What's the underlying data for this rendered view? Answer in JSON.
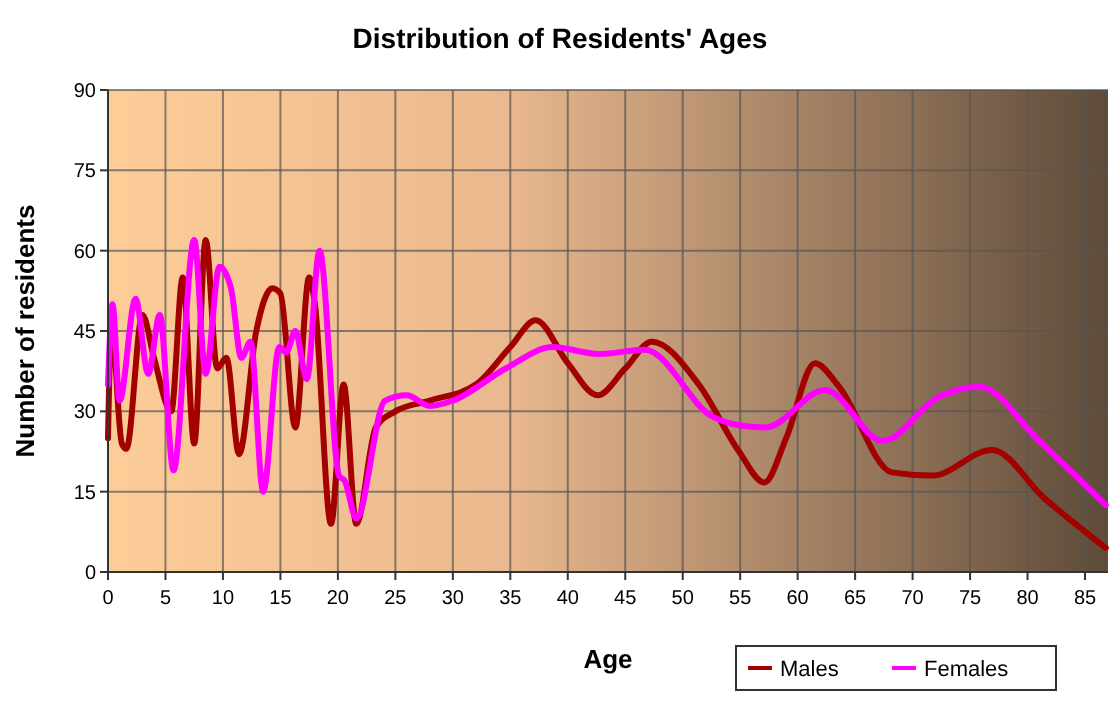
{
  "chart_data": {
    "type": "line",
    "title": "Distribution of Residents' Ages",
    "xlabel": "Age",
    "ylabel": "Number of residents",
    "xlim": [
      0,
      87
    ],
    "xticks": [
      0,
      5,
      10,
      15,
      20,
      25,
      30,
      35,
      40,
      45,
      50,
      55,
      60,
      65,
      70,
      75,
      80,
      85
    ],
    "ylim": [
      0,
      90
    ],
    "yticks": [
      0,
      15,
      30,
      45,
      60,
      75,
      90
    ],
    "grid": true,
    "legend": "bottom right",
    "line_style": "solid",
    "series": [
      {
        "name": "Males",
        "color": "#a30000",
        "x": [
          0,
          0.3,
          1.2,
          1.6,
          3,
          4,
          5.5,
          6.5,
          7.5,
          8.5,
          9.5,
          10.3,
          11.4,
          12.9,
          14.3,
          15,
          16.3,
          17.5,
          18,
          19.4,
          20.5,
          21.6,
          23.3,
          25,
          28,
          32,
          35,
          37.2,
          40,
          42.6,
          45,
          47.3,
          51.4,
          54.9,
          57.1,
          59,
          61.5,
          63.6,
          68.2,
          71.7,
          76.9,
          81.5,
          86.8
        ],
        "values": [
          25,
          46,
          24,
          23,
          48,
          40,
          30,
          55,
          24,
          62,
          38,
          40,
          22,
          45,
          53,
          52,
          27,
          55,
          50,
          9,
          35,
          9,
          27,
          30,
          32,
          35,
          42,
          47,
          39,
          33,
          38,
          43,
          35,
          22.5,
          16.7,
          25,
          39,
          34.6,
          18.6,
          18,
          22.8,
          13.7,
          4.5
        ]
      },
      {
        "name": "Females",
        "color": "#ff00ff",
        "x": [
          0,
          0.4,
          1,
          2.4,
          3.5,
          4.5,
          5.7,
          7.5,
          8.5,
          9.7,
          10.7,
          11.6,
          12.4,
          13.5,
          14.9,
          15.5,
          16.3,
          17.3,
          18.4,
          20.1,
          20.6,
          21.6,
          24.1,
          26,
          28,
          30,
          34.6,
          38.7,
          42.7,
          46.7,
          52.6,
          54.9,
          57.2,
          62.4,
          67.4,
          72.3,
          75.8,
          81,
          86.8
        ],
        "values": [
          35,
          50,
          32,
          51,
          37,
          48,
          19,
          62,
          37,
          57,
          53,
          40,
          43,
          15,
          42,
          41,
          45,
          36,
          60,
          18,
          17,
          10,
          32,
          33,
          31,
          32,
          38,
          42,
          40.7,
          41.5,
          29,
          27.4,
          27,
          34,
          24.5,
          32.7,
          34.6,
          24.5,
          12.5
        ]
      }
    ]
  }
}
